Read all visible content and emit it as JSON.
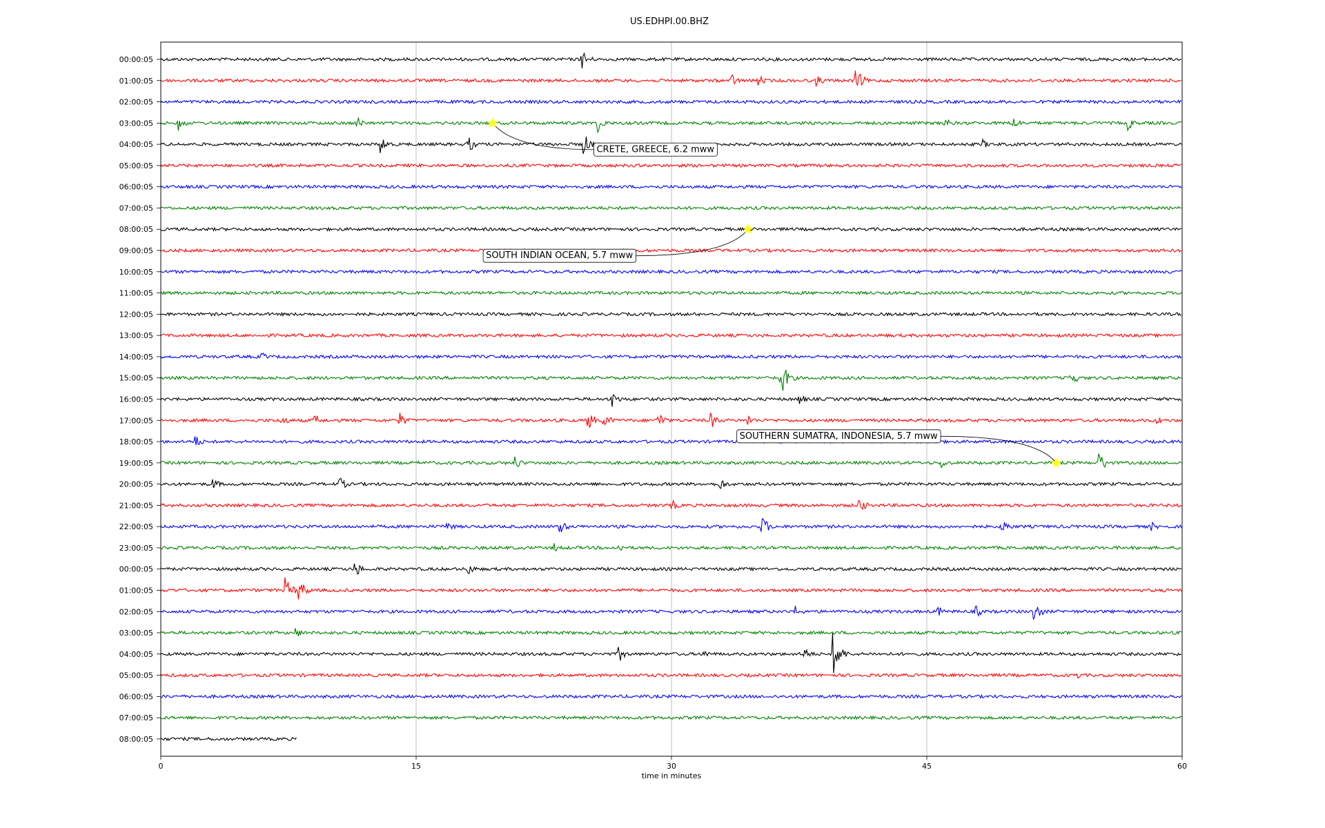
{
  "chart_data": {
    "type": "line",
    "title": "US.EDHPI.00.BHZ",
    "xlabel": "time in minutes",
    "ylabel": "",
    "xlim": [
      0,
      60
    ],
    "xticks": [
      0,
      15,
      30,
      45,
      60
    ],
    "x_grid": true,
    "series_colors": [
      "#000000",
      "#ff0000",
      "#0000ff",
      "#008000"
    ],
    "row_labels": [
      "00:00:05",
      "01:00:05",
      "02:00:05",
      "03:00:05",
      "04:00:05",
      "05:00:05",
      "06:00:05",
      "07:00:05",
      "08:00:05",
      "09:00:05",
      "10:00:05",
      "11:00:05",
      "12:00:05",
      "13:00:05",
      "14:00:05",
      "15:00:05",
      "16:00:05",
      "17:00:05",
      "18:00:05",
      "19:00:05",
      "20:00:05",
      "21:00:05",
      "22:00:05",
      "23:00:05",
      "00:00:05",
      "01:00:05",
      "02:00:05",
      "03:00:05",
      "04:00:05",
      "05:00:05",
      "06:00:05",
      "07:00:05",
      "08:00:05"
    ],
    "last_row_end_minute": 8,
    "spikes": [
      {
        "row": 0,
        "minute": 24.7,
        "amp": 0.9
      },
      {
        "row": 1,
        "minute": 33.5,
        "amp": 0.6
      },
      {
        "row": 1,
        "minute": 35.0,
        "amp": 0.6
      },
      {
        "row": 1,
        "minute": 38.5,
        "amp": 0.5
      },
      {
        "row": 1,
        "minute": 40.8,
        "amp": 1.1
      },
      {
        "row": 3,
        "minute": 1.0,
        "amp": 0.7
      },
      {
        "row": 3,
        "minute": 11.5,
        "amp": 0.6
      },
      {
        "row": 3,
        "minute": 25.6,
        "amp": 0.9
      },
      {
        "row": 3,
        "minute": 46.0,
        "amp": 0.5
      },
      {
        "row": 3,
        "minute": 50.0,
        "amp": 0.7
      },
      {
        "row": 3,
        "minute": 56.8,
        "amp": 0.6
      },
      {
        "row": 4,
        "minute": 12.9,
        "amp": 0.8
      },
      {
        "row": 4,
        "minute": 18.0,
        "amp": 0.8
      },
      {
        "row": 4,
        "minute": 24.8,
        "amp": 1.1
      },
      {
        "row": 4,
        "minute": 48.3,
        "amp": 0.4
      },
      {
        "row": 14,
        "minute": 5.9,
        "amp": 0.4
      },
      {
        "row": 15,
        "minute": 36.4,
        "amp": 1.6
      },
      {
        "row": 15,
        "minute": 53.4,
        "amp": 0.8
      },
      {
        "row": 16,
        "minute": 26.5,
        "amp": 0.7
      },
      {
        "row": 16,
        "minute": 37.5,
        "amp": 0.5
      },
      {
        "row": 17,
        "minute": 7.1,
        "amp": 0.5
      },
      {
        "row": 17,
        "minute": 9.0,
        "amp": 0.6
      },
      {
        "row": 17,
        "minute": 14.0,
        "amp": 0.7
      },
      {
        "row": 17,
        "minute": 25.0,
        "amp": 1.0
      },
      {
        "row": 17,
        "minute": 26.0,
        "amp": 0.7
      },
      {
        "row": 17,
        "minute": 29.2,
        "amp": 0.8
      },
      {
        "row": 17,
        "minute": 32.3,
        "amp": 0.7
      },
      {
        "row": 17,
        "minute": 34.5,
        "amp": 0.5
      },
      {
        "row": 17,
        "minute": 58.5,
        "amp": 0.4
      },
      {
        "row": 18,
        "minute": 2.0,
        "amp": 0.6
      },
      {
        "row": 19,
        "minute": 20.8,
        "amp": 0.6
      },
      {
        "row": 19,
        "minute": 45.8,
        "amp": 0.6
      },
      {
        "row": 19,
        "minute": 55.1,
        "amp": 1.0
      },
      {
        "row": 20,
        "minute": 3.0,
        "amp": 0.6
      },
      {
        "row": 20,
        "minute": 10.5,
        "amp": 0.6
      },
      {
        "row": 20,
        "minute": 32.8,
        "amp": 0.6
      },
      {
        "row": 21,
        "minute": 30.0,
        "amp": 0.5
      },
      {
        "row": 21,
        "minute": 41.0,
        "amp": 0.7
      },
      {
        "row": 22,
        "minute": 16.8,
        "amp": 0.5
      },
      {
        "row": 22,
        "minute": 23.4,
        "amp": 0.7
      },
      {
        "row": 22,
        "minute": 35.3,
        "amp": 0.9
      },
      {
        "row": 22,
        "minute": 49.4,
        "amp": 0.7
      },
      {
        "row": 22,
        "minute": 58.2,
        "amp": 0.4
      },
      {
        "row": 23,
        "minute": 23.1,
        "amp": 0.4
      },
      {
        "row": 23,
        "minute": 26.9,
        "amp": 0.4
      },
      {
        "row": 24,
        "minute": 11.4,
        "amp": 0.7
      },
      {
        "row": 24,
        "minute": 18.0,
        "amp": 0.6
      },
      {
        "row": 25,
        "minute": 7.3,
        "amp": 1.1
      },
      {
        "row": 25,
        "minute": 8.1,
        "amp": 1.0
      },
      {
        "row": 26,
        "minute": 37.3,
        "amp": 0.5
      },
      {
        "row": 26,
        "minute": 45.6,
        "amp": 0.5
      },
      {
        "row": 26,
        "minute": 47.9,
        "amp": 0.5
      },
      {
        "row": 26,
        "minute": 51.3,
        "amp": 0.9
      },
      {
        "row": 27,
        "minute": 7.9,
        "amp": 0.5
      },
      {
        "row": 28,
        "minute": 26.9,
        "amp": 0.7
      },
      {
        "row": 28,
        "minute": 31.9,
        "amp": 0.4
      },
      {
        "row": 28,
        "minute": 37.8,
        "amp": 0.6
      },
      {
        "row": 28,
        "minute": 39.5,
        "amp": 1.8
      },
      {
        "row": 29,
        "minute": 53.7,
        "amp": 0.4
      }
    ],
    "events": [
      {
        "label": "CRETE, GREECE, 6.2 mww",
        "row": 3,
        "minute": 19.5,
        "label_minute": 25.6,
        "label_row": 4.2
      },
      {
        "label": "SOUTH INDIAN OCEAN, 5.7 mww",
        "row": 8,
        "minute": 34.5,
        "label_minute": 19.1,
        "label_row": 9.2
      },
      {
        "label": "SOUTHERN SUMATRA, INDONESIA, 5.7 mww",
        "row": 19,
        "minute": 52.6,
        "label_minute": 34.0,
        "label_row": 17.7
      }
    ],
    "event_marker_color": "#ffff00"
  }
}
